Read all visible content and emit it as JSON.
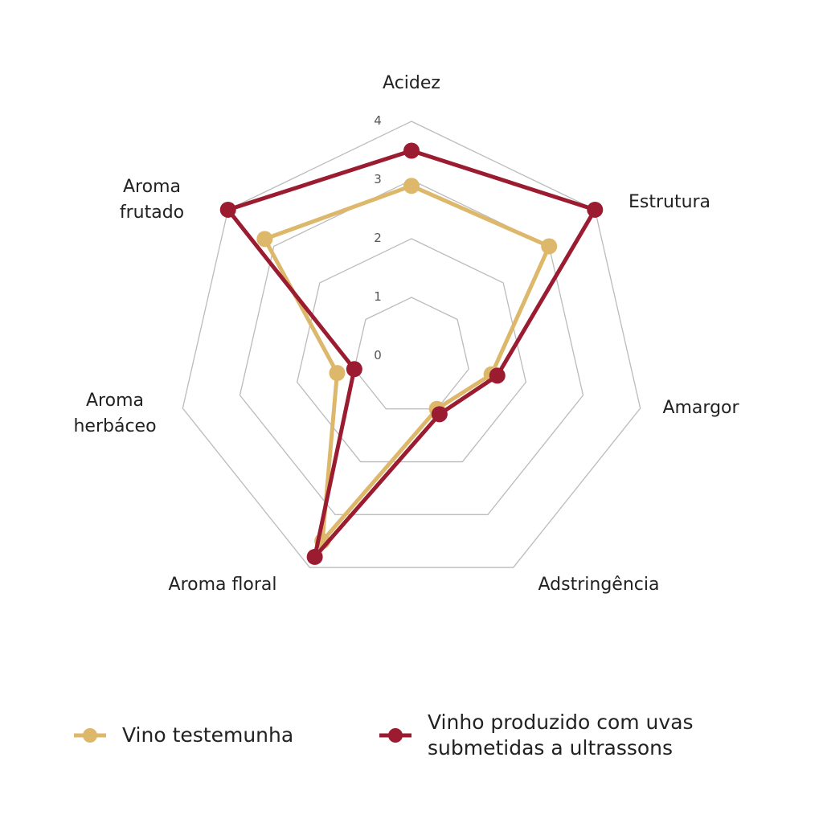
{
  "chart_data": {
    "type": "radar",
    "categories": [
      "Acidez",
      "Estrutura",
      "Amargor",
      "Adstringência",
      "Aroma floral",
      "Aroma\nherbáceo",
      "Aroma\nfrutado"
    ],
    "ylim": [
      0,
      4
    ],
    "yticks": [
      0,
      1,
      2,
      3,
      4
    ],
    "grid": true,
    "series": [
      {
        "name": "Vino testemunha",
        "color": "#ddb86a",
        "values": [
          2.9,
          3.0,
          1.4,
          1.0,
          3.5,
          1.3,
          3.2
        ]
      },
      {
        "name": "Vinho produzido com uvas\nsubmetidas a ultrassons",
        "color": "#9b1b30",
        "values": [
          3.5,
          4.0,
          1.5,
          1.1,
          3.8,
          1.0,
          4.0
        ]
      }
    ]
  }
}
